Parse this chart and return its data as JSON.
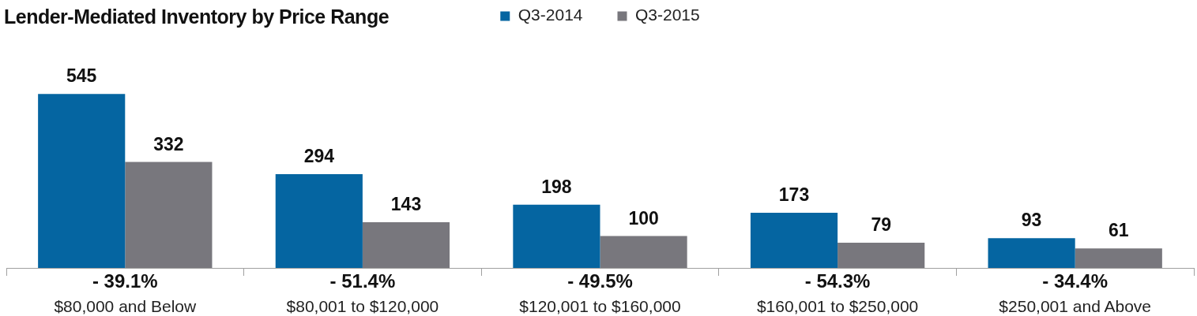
{
  "chart_data": {
    "type": "bar",
    "title": "Lender-Mediated Inventory by Price Range",
    "categories": [
      "$80,000 and Below",
      "$80,001 to $120,000",
      "$120,001 to $160,000",
      "$160,001 to $250,000",
      "$250,001 and Above"
    ],
    "series": [
      {
        "name": "Q3-2014",
        "color": "#0565a1",
        "values": [
          545,
          294,
          198,
          173,
          93
        ]
      },
      {
        "name": "Q3-2015",
        "color": "#78777d",
        "values": [
          332,
          143,
          100,
          79,
          61
        ]
      }
    ],
    "data_labels": true,
    "legend": "top",
    "annotations": [
      "- 39.1%",
      "- 51.4%",
      "- 49.5%",
      "- 54.3%",
      "- 34.4%"
    ]
  }
}
